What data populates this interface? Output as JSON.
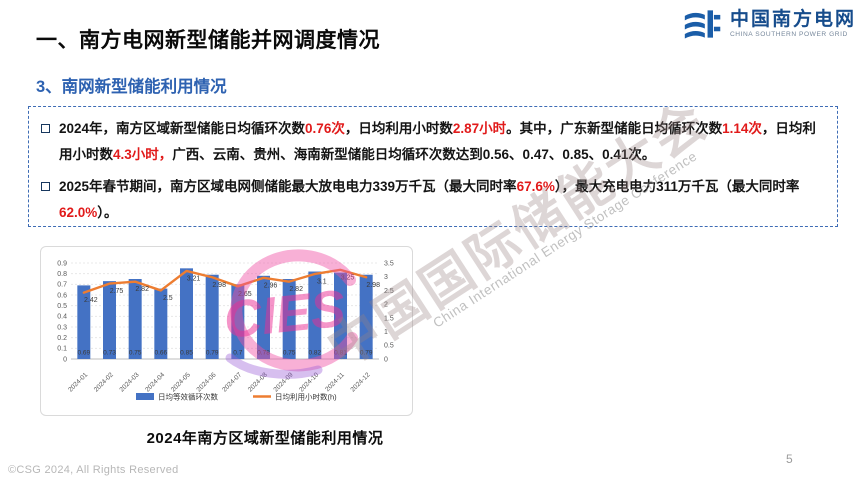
{
  "header": {
    "title": "一、南方电网新型储能并网调度情况",
    "subtitle": "3、南网新型储能利用情况",
    "logo": {
      "name_cn": "中国南方电网",
      "name_en": "CHINA SOUTHERN POWER GRID"
    }
  },
  "info_box": {
    "bullets": [
      {
        "segments": [
          {
            "text": "2024年，南方区域新型储能日均循环次数",
            "em": false
          },
          {
            "text": "0.76次",
            "em": true
          },
          {
            "text": "，日均利用小时数",
            "em": false
          },
          {
            "text": "2.87小时",
            "em": true
          },
          {
            "text": "。其中，广东新型储能日均循环次数",
            "em": false
          },
          {
            "text": "1.14次",
            "em": true
          },
          {
            "text": "，日均利用小时数",
            "em": false
          },
          {
            "text": "4.3小时，",
            "em": true
          },
          {
            "text": "广西、云南、贵州、海南新型储能日均循环次数达到0.56、0.47、0.85、0.41次。",
            "em": false
          }
        ]
      },
      {
        "segments": [
          {
            "text": "2025年春节期间，南方区域电网侧储能最大放电电力339万千瓦（最大同时率",
            "em": false
          },
          {
            "text": "67.6%",
            "em": true
          },
          {
            "text": "），最大充电电力311万千瓦（最大同时率",
            "em": false
          },
          {
            "text": "62.0%",
            "em": true
          },
          {
            "text": "）。",
            "em": false
          }
        ]
      }
    ]
  },
  "chart_data": {
    "type": "bar+line combo",
    "categories": [
      "2024-01",
      "2024-02",
      "2024-03",
      "2024-04",
      "2024-05",
      "2024-06",
      "2024-07",
      "2024-08",
      "2024-09",
      "2024-10",
      "2024-11",
      "2024-12"
    ],
    "series": [
      {
        "name": "日均等效循环次数",
        "type": "bar",
        "axis": "left",
        "color": "#4472C4",
        "values": [
          0.69,
          0.73,
          0.75,
          0.66,
          0.85,
          0.79,
          0.7,
          0.78,
          0.75,
          0.82,
          0.81,
          0.79
        ]
      },
      {
        "name": "日均利用小时数(h)",
        "type": "line",
        "axis": "right",
        "color": "#ED7D31",
        "values": [
          2.42,
          2.75,
          2.82,
          2.5,
          3.21,
          2.98,
          2.65,
          2.96,
          2.82,
          3.1,
          3.25,
          2.98
        ]
      }
    ],
    "left_axis": {
      "min": 0,
      "max": 0.9,
      "step": 0.1
    },
    "right_axis": {
      "min": 0,
      "max": 3.5,
      "step": 0.5
    },
    "grid": true,
    "legend_position": "bottom",
    "title": ""
  },
  "chart_caption": "2024年南方区域新型储能利用情况",
  "watermark": {
    "cn": "中国国际储能大会",
    "en": "China International Energy Storage Conference",
    "logo_text": "CIES"
  },
  "footer": {
    "copyright": "©CSG 2024, All Rights Reserved",
    "page": "5"
  },
  "colors": {
    "bar": "#4472C4",
    "line": "#ED7D31",
    "accent_blue": "#2E62B1",
    "em_red": "#E11A1A",
    "logo_blue": "#164C8C",
    "box_border": "#3E6CB5"
  }
}
